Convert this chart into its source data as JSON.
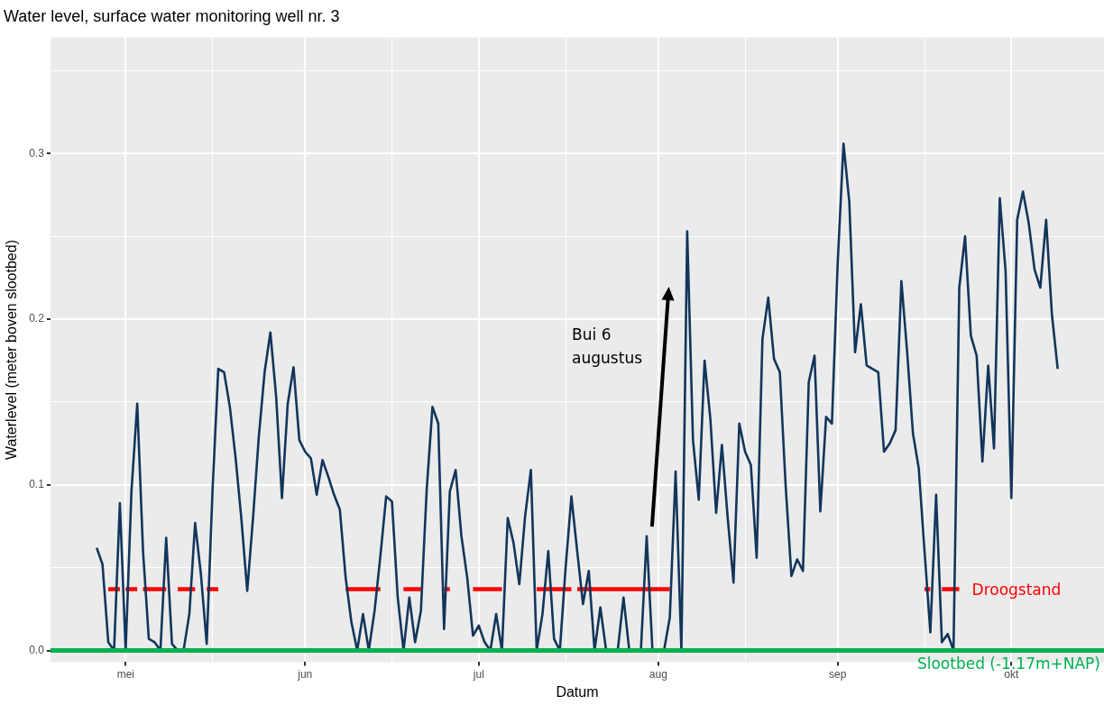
{
  "chart_data": {
    "type": "line",
    "title": "Water level, surface water monitoring well nr. 3",
    "xlabel": "Datum",
    "ylabel": "Waterlevel (meter boven slootbed)",
    "xlim": [
      "--04-18",
      "--10-17"
    ],
    "xticks": [
      {
        "value": "--05-01",
        "label": "mei"
      },
      {
        "value": "--05-16",
        "label": null
      },
      {
        "value": "--06-01",
        "label": "jun"
      },
      {
        "value": "--06-16",
        "label": null
      },
      {
        "value": "--07-01",
        "label": "jul"
      },
      {
        "value": "--07-16",
        "label": null
      },
      {
        "value": "--08-01",
        "label": "aug"
      },
      {
        "value": "--08-16",
        "label": null
      },
      {
        "value": "--09-01",
        "label": "sep"
      },
      {
        "value": "--09-16",
        "label": null
      },
      {
        "value": "--10-01",
        "label": "okt"
      }
    ],
    "ylim": [
      -0.007,
      0.37
    ],
    "yticks": [
      {
        "value": 0,
        "label": "0.0"
      },
      {
        "value": 0.05,
        "label": null
      },
      {
        "value": 0.1,
        "label": "0.1"
      },
      {
        "value": 0.15,
        "label": null
      },
      {
        "value": 0.2,
        "label": "0.2"
      },
      {
        "value": 0.25,
        "label": null
      },
      {
        "value": 0.3,
        "label": "0.3"
      },
      {
        "value": 0.35,
        "label": null
      }
    ],
    "grid": true,
    "marker": "none",
    "line_style": "solid",
    "series": [
      {
        "color": "#12355b",
        "x": [
          "--04-26",
          "--04-27",
          "--04-28",
          "--04-29",
          "--04-30",
          "--05-01",
          "--05-02",
          "--05-03",
          "--05-04",
          "--05-05",
          "--05-06",
          "--05-07",
          "--05-08",
          "--05-09",
          "--05-10",
          "--05-11",
          "--05-12",
          "--05-13",
          "--05-14",
          "--05-15",
          "--05-16",
          "--05-17",
          "--05-18",
          "--05-19",
          "--05-20",
          "--05-21",
          "--05-22",
          "--05-23",
          "--05-24",
          "--05-25",
          "--05-26",
          "--05-27",
          "--05-28",
          "--05-29",
          "--05-30",
          "--05-31",
          "--06-01",
          "--06-02",
          "--06-03",
          "--06-04",
          "--06-05",
          "--06-06",
          "--06-07",
          "--06-08",
          "--06-09",
          "--06-10",
          "--06-11",
          "--06-12",
          "--06-13",
          "--06-14",
          "--06-15",
          "--06-16",
          "--06-17",
          "--06-18",
          "--06-19",
          "--06-20",
          "--06-21",
          "--06-22",
          "--06-23",
          "--06-24",
          "--06-25",
          "--06-26",
          "--06-27",
          "--06-28",
          "--06-29",
          "--06-30",
          "--07-01",
          "--07-02",
          "--07-03",
          "--07-04",
          "--07-05",
          "--07-06",
          "--07-07",
          "--07-08",
          "--07-09",
          "--07-10",
          "--07-11",
          "--07-12",
          "--07-13",
          "--07-14",
          "--07-15",
          "--07-16",
          "--07-17",
          "--07-18",
          "--07-19",
          "--07-20",
          "--07-21",
          "--07-22",
          "--07-23",
          "--07-24",
          "--07-25",
          "--07-26",
          "--07-27",
          "--07-28",
          "--07-29",
          "--07-30",
          "--07-31",
          "--08-01",
          "--08-02",
          "--08-03",
          "--08-04",
          "--08-05",
          "--08-06",
          "--08-07",
          "--08-08",
          "--08-09",
          "--08-10",
          "--08-11",
          "--08-12",
          "--08-13",
          "--08-14",
          "--08-15",
          "--08-16",
          "--08-17",
          "--08-18",
          "--08-19",
          "--08-20",
          "--08-21",
          "--08-22",
          "--08-23",
          "--08-24",
          "--08-25",
          "--08-26",
          "--08-27",
          "--08-28",
          "--08-29",
          "--08-30",
          "--08-31",
          "--09-01",
          "--09-02",
          "--09-03",
          "--09-04",
          "--09-05",
          "--09-06",
          "--09-07",
          "--09-08",
          "--09-09",
          "--09-10",
          "--09-11",
          "--09-12",
          "--09-13",
          "--09-14",
          "--09-15",
          "--09-16",
          "--09-17",
          "--09-18",
          "--09-19",
          "--09-20",
          "--09-21",
          "--09-22",
          "--09-23",
          "--09-24",
          "--09-25",
          "--09-26",
          "--09-27",
          "--09-28",
          "--09-29",
          "--09-30",
          "--10-01",
          "--10-02",
          "--10-03",
          "--10-04",
          "--10-05",
          "--10-06",
          "--10-07",
          "--10-08",
          "--10-09"
        ],
        "values": [
          0.062,
          0.052,
          0.005,
          0.0,
          0.089,
          0.0,
          0.096,
          0.149,
          0.06,
          0.007,
          0.005,
          0.0,
          0.068,
          0.004,
          0.0,
          0.0,
          0.022,
          0.077,
          0.046,
          0.004,
          0.096,
          0.17,
          0.168,
          0.147,
          0.116,
          0.079,
          0.036,
          0.08,
          0.129,
          0.168,
          0.192,
          0.153,
          0.092,
          0.149,
          0.171,
          0.127,
          0.12,
          0.116,
          0.094,
          0.115,
          0.105,
          0.094,
          0.085,
          0.044,
          0.017,
          0.0,
          0.022,
          0.0,
          0.024,
          0.057,
          0.093,
          0.09,
          0.032,
          0.0,
          0.032,
          0.005,
          0.024,
          0.097,
          0.147,
          0.137,
          0.013,
          0.096,
          0.109,
          0.069,
          0.044,
          0.009,
          0.015,
          0.005,
          0.0,
          0.022,
          0.0,
          0.08,
          0.065,
          0.04,
          0.081,
          0.109,
          0.0,
          0.022,
          0.06,
          0.007,
          0.0,
          0.05,
          0.093,
          0.06,
          0.028,
          0.048,
          0.0,
          0.026,
          0.0,
          0.0,
          0.0,
          0.032,
          0.0,
          0.0,
          0.0,
          0.069,
          0.0,
          0.0,
          0.0,
          0.02,
          0.108,
          0.0,
          0.253,
          0.127,
          0.091,
          0.175,
          0.14,
          0.083,
          0.124,
          0.08,
          0.041,
          0.137,
          0.12,
          0.112,
          0.056,
          0.188,
          0.213,
          0.176,
          0.168,
          0.1,
          0.045,
          0.055,
          0.048,
          0.162,
          0.178,
          0.084,
          0.141,
          0.137,
          0.234,
          0.306,
          0.271,
          0.18,
          0.209,
          0.172,
          0.17,
          0.168,
          0.12,
          0.125,
          0.133,
          0.223,
          0.18,
          0.131,
          0.11,
          0.06,
          0.011,
          0.094,
          0.005,
          0.01,
          0.0,
          0.219,
          0.25,
          0.19,
          0.178,
          0.114,
          0.172,
          0.122,
          0.273,
          0.229,
          0.092,
          0.26,
          0.277,
          0.258,
          0.23,
          0.219,
          0.26,
          0.203,
          0.17
        ]
      },
      {
        "color": "#ff0000",
        "x": [
          "--04-28",
          "--04-30"
        ],
        "values": [
          0.037,
          0.037
        ]
      },
      {
        "color": "#ff0000",
        "x": [
          "--05-01",
          "--05-03"
        ],
        "values": [
          0.037,
          0.037
        ]
      },
      {
        "color": "#ff0000",
        "x": [
          "--05-04",
          "--05-08"
        ],
        "values": [
          0.037,
          0.037
        ]
      },
      {
        "color": "#ff0000",
        "x": [
          "--05-10",
          "--05-13"
        ],
        "values": [
          0.037,
          0.037
        ]
      },
      {
        "color": "#ff0000",
        "x": [
          "--05-15",
          "--05-17"
        ],
        "values": [
          0.037,
          0.037
        ]
      },
      {
        "color": "#ff0000",
        "x": [
          "--06-08",
          "--06-14"
        ],
        "values": [
          0.037,
          0.037
        ]
      },
      {
        "color": "#ff0000",
        "x": [
          "--06-18",
          "--06-21"
        ],
        "values": [
          0.037,
          0.037
        ]
      },
      {
        "color": "#ff0000",
        "x": [
          "--06-25",
          "--06-26"
        ],
        "values": [
          0.037,
          0.037
        ]
      },
      {
        "color": "#ff0000",
        "x": [
          "--06-30",
          "--07-05"
        ],
        "values": [
          0.037,
          0.037
        ]
      },
      {
        "color": "#ff0000",
        "x": [
          "--07-11",
          "--07-17"
        ],
        "values": [
          0.037,
          0.037
        ]
      },
      {
        "color": "#ff0000",
        "x": [
          "--07-18",
          "--08-03"
        ],
        "values": [
          0.037,
          0.037
        ]
      },
      {
        "color": "#ff0000",
        "x": [
          "--09-16",
          "--09-17"
        ],
        "values": [
          0.037,
          0.037
        ]
      },
      {
        "name": "Droogstand",
        "color": "#ff0000",
        "x": [
          "--09-19",
          "--09-22"
        ],
        "values": [
          0.037,
          0.037
        ]
      }
    ],
    "ref_lines": [
      {
        "axis": "y",
        "value": 0,
        "label": "Slootbed (-1.17m+NAP)",
        "color": "#00b050"
      }
    ],
    "annotations": [
      "Bui 6\naugustus"
    ]
  }
}
